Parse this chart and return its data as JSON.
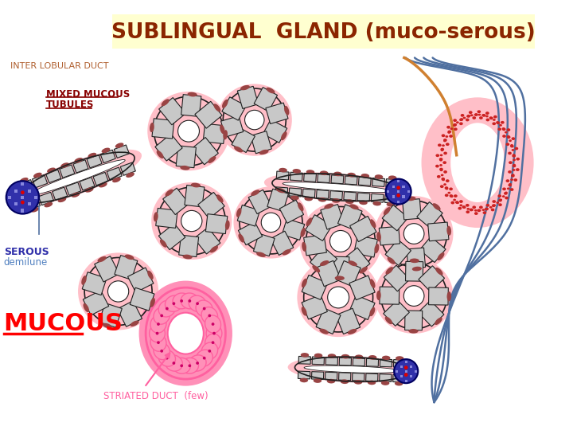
{
  "title": "SUBLINGUAL  GLAND (muco-serous)",
  "title_color": "#8B2500",
  "title_bg": "#FFFFD0",
  "bg_color": "#FFFFFF",
  "label_inter_lobular": "INTER LOBULAR DUCT",
  "label_mixed": "MIXED MUCOUS\nTUBULES",
  "label_serous": "SEROUS",
  "label_demilune": "demilune",
  "label_mucous": "MUCOUS",
  "label_striated": "STRIATED DUCT  (few)",
  "pink_bg": "#FFBFC8",
  "cell_gray": "#C8C8C8",
  "cell_outline": "#202020",
  "serous_cap_color": "#994444",
  "blue_checker": "#3030AA",
  "red_dot": "#DD0000",
  "blue_line_color": "#5070A0",
  "orange_line_color": "#D08030",
  "dark_red_stipple": "#CC2222",
  "striated_pink": "#FF60A0",
  "striated_bg": "#FF90B8"
}
